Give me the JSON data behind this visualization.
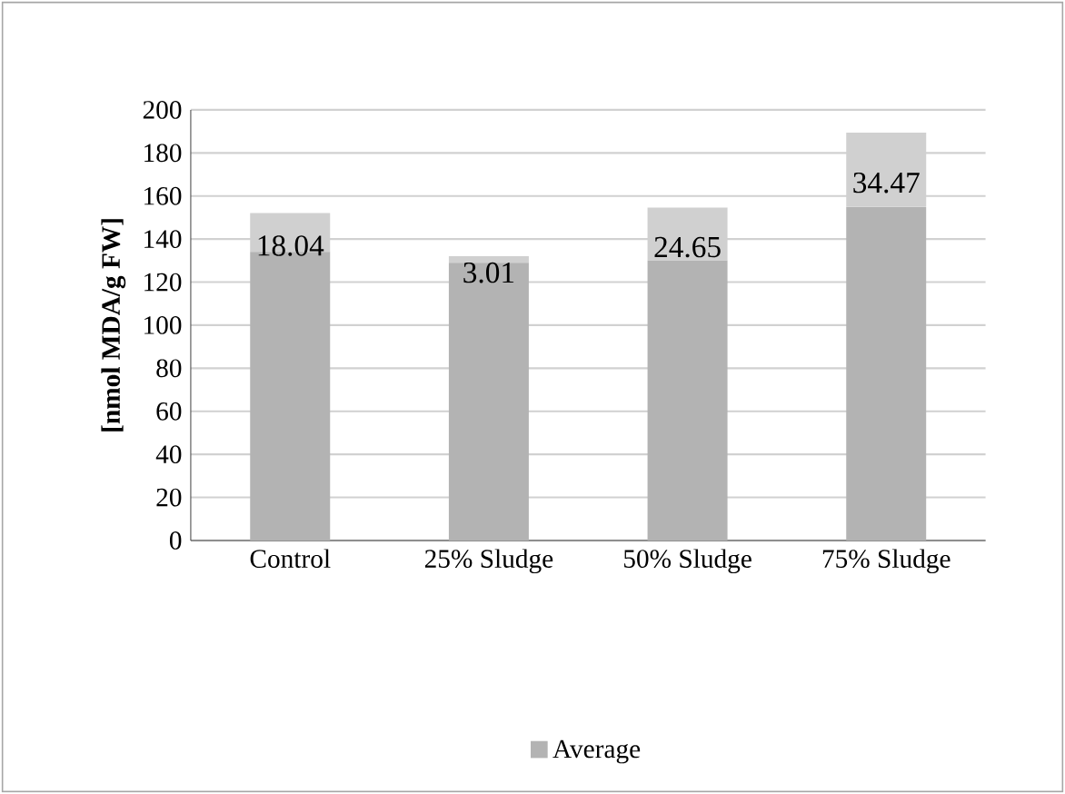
{
  "chart_data": {
    "type": "bar",
    "stacked": true,
    "ylabel": "[nmol MDA/g FW]",
    "categories": [
      "Control",
      "25% Sludge",
      "50% Sludge",
      "75% Sludge"
    ],
    "series": [
      {
        "name": "Average",
        "color": "#b3b3b3",
        "values": [
          134,
          129,
          130,
          155
        ]
      },
      {
        "color": "#d0d0d0",
        "values": [
          18.04,
          3.01,
          24.65,
          34.47
        ],
        "value_labels": [
          "18.04",
          "3.01",
          "24.65",
          "34.47"
        ]
      }
    ],
    "ylim": [
      0,
      200
    ],
    "yticks": [
      0,
      20,
      40,
      60,
      80,
      100,
      120,
      140,
      160,
      180,
      200
    ],
    "grid": "y",
    "legend": "bottom"
  }
}
